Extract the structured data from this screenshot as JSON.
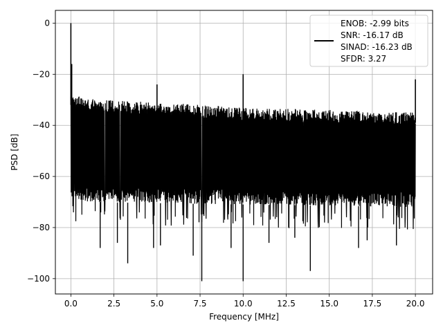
{
  "chart_data": {
    "type": "line",
    "title": "",
    "xlabel": "Frequency [MHz]",
    "ylabel": "PSD [dB]",
    "xlim": [
      -0.9,
      21.0
    ],
    "ylim": [
      -106,
      5
    ],
    "x_ticks": [
      0.0,
      2.5,
      5.0,
      7.5,
      10.0,
      12.5,
      15.0,
      17.5,
      20.0
    ],
    "x_tick_labels": [
      "0.0",
      "2.5",
      "5.0",
      "7.5",
      "10.0",
      "12.5",
      "15.0",
      "17.5",
      "20.0"
    ],
    "y_ticks": [
      0,
      -20,
      -40,
      -60,
      -80,
      -100
    ],
    "y_tick_labels": [
      "0",
      "−20",
      "−40",
      "−60",
      "−80",
      "−100"
    ],
    "grid": true,
    "legend_position": "top-right",
    "legend_lines": [
      "ENOB: -2.99 bits",
      "SNR: -16.17 dB",
      "SINAD: -16.23 dB",
      "SFDR: 3.27"
    ],
    "series": [
      {
        "color": "#000000",
        "noise_floor_upper_db": [
          [
            0.0,
            -28
          ],
          [
            1.5,
            -30
          ],
          [
            5.0,
            -31
          ],
          [
            10.0,
            -33
          ],
          [
            15.0,
            -34
          ],
          [
            20.0,
            -35
          ]
        ],
        "noise_floor_lower_db": [
          [
            0.0,
            -68
          ],
          [
            1.0,
            -70
          ],
          [
            10.0,
            -71
          ],
          [
            20.0,
            -72
          ]
        ],
        "peaks": [
          {
            "x": 0.0,
            "y": 0
          },
          {
            "x": 0.05,
            "y": -16
          },
          {
            "x": 5.0,
            "y": -24
          },
          {
            "x": 10.0,
            "y": -20
          },
          {
            "x": 20.0,
            "y": -22
          }
        ],
        "dips": [
          {
            "x": 1.7,
            "y": -88
          },
          {
            "x": 2.7,
            "y": -86
          },
          {
            "x": 3.3,
            "y": -94
          },
          {
            "x": 4.8,
            "y": -88
          },
          {
            "x": 5.2,
            "y": -87
          },
          {
            "x": 7.1,
            "y": -91
          },
          {
            "x": 7.6,
            "y": -101
          },
          {
            "x": 9.3,
            "y": -88
          },
          {
            "x": 10.0,
            "y": -101
          },
          {
            "x": 11.5,
            "y": -86
          },
          {
            "x": 13.0,
            "y": -84
          },
          {
            "x": 13.9,
            "y": -97
          },
          {
            "x": 16.7,
            "y": -88
          },
          {
            "x": 17.2,
            "y": -85
          },
          {
            "x": 18.9,
            "y": -87
          }
        ]
      }
    ]
  }
}
